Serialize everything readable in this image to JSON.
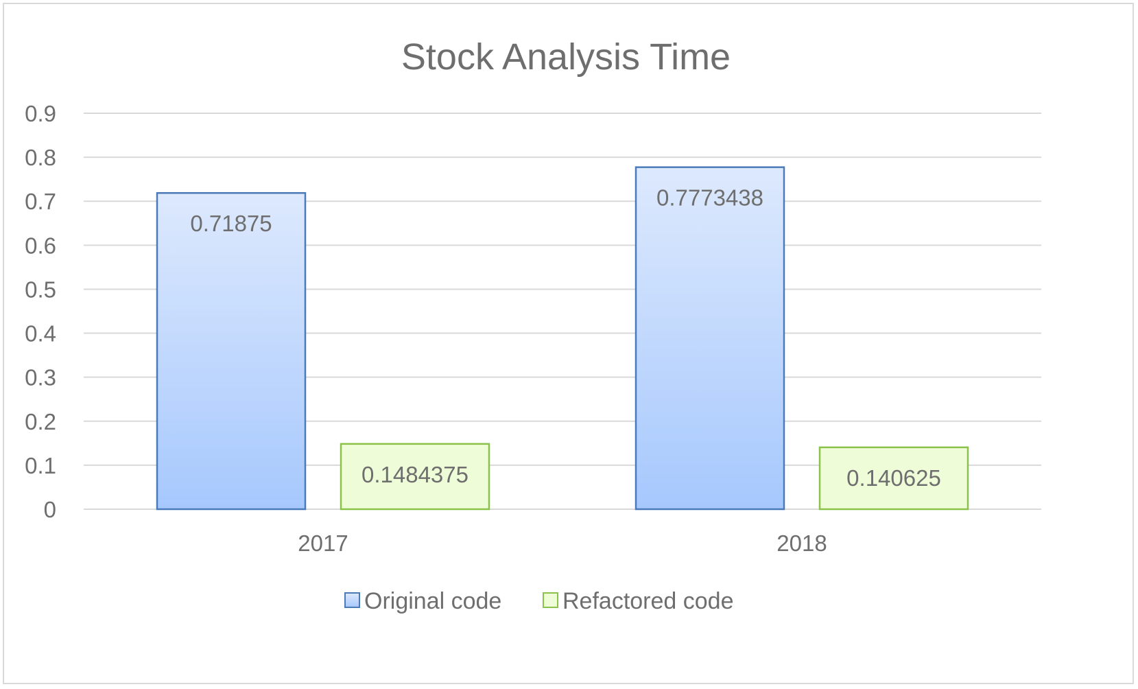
{
  "chart_data": {
    "type": "bar",
    "title": "Stock Analysis Time",
    "categories": [
      "2017",
      "2018"
    ],
    "series": [
      {
        "name": "Original code",
        "values": [
          0.71875,
          0.7773438
        ],
        "labels": [
          "0.71875",
          "0.7773438"
        ],
        "color": "#a6c8fd",
        "color_top": "#dde9fd",
        "border": "#4a7ab8"
      },
      {
        "name": "Refactored code",
        "values": [
          0.1484375,
          0.140625
        ],
        "labels": [
          "0.1484375",
          "0.140625"
        ],
        "color": "#eefcd8",
        "border": "#8bc34a"
      }
    ],
    "yticks": [
      "0",
      "0.1",
      "0.2",
      "0.3",
      "0.4",
      "0.5",
      "0.6",
      "0.7",
      "0.8",
      "0.9"
    ],
    "ylim": [
      0,
      0.9
    ],
    "xlabel": "",
    "ylabel": "",
    "grid": true,
    "legend": "bottom",
    "colors": {
      "text": "#6e6e6e",
      "grid": "#d9d9d9"
    }
  }
}
